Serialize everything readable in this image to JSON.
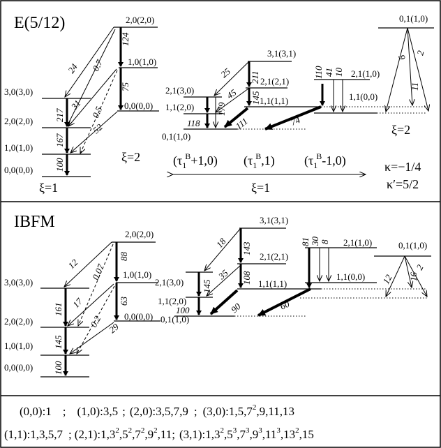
{
  "panel_top": {
    "title": "E(5/12)",
    "xi_label_left": "ξ=1",
    "xi_label_mid": "ξ=2",
    "xi_label_bottom": "ξ=1",
    "xi_label_right": "ξ=2",
    "kappa": "κ=−1/4",
    "kappa_prime": "κ′=5/2",
    "band_labels": {
      "tau_a_pre": "(τ",
      "tau_a_sub": "1",
      "tau_a_sup": "B",
      "tau_a_post": "+1,0)",
      "tau_b_pre": "(τ",
      "tau_b_sub": "1",
      "tau_b_sup": "B",
      "tau_b_post": ",1)",
      "tau_c_pre": "(τ",
      "tau_c_sub": "1",
      "tau_c_sup": "B",
      "tau_c_post": "-1,0)"
    },
    "levels": {
      "g1_20": "2,0(2,0)",
      "g1_10": "1,0(1,0)",
      "g1_00": "0,0(0,0)",
      "g2_30": "3,0(3,0)",
      "g2_20": "2,0(2,0)",
      "g2_10": "1,0(1,0)",
      "g2_00": "0,0(0,0)",
      "g3_21": "2,1(3,0)",
      "g3_11": "1,1(2,0)",
      "g3_01": "0,1(1,0)",
      "g4_31": "3,1(3,1)",
      "g4_21": "2,1(2,1)",
      "g4_11": "1,1(1,1)",
      "g5_21": "2,1(1,0)",
      "g5_11": "1,1(0,0)",
      "g6_01": "0,1(1,0)"
    },
    "transitions": {
      "t124": "124",
      "t75": "75",
      "t24": "24",
      "t0_7": "0.7",
      "t31": "31",
      "t0_5": "0.5",
      "t52": "52",
      "t217": "217",
      "t167": "167",
      "t100": "100",
      "t25": "25",
      "t211": "211",
      "t45": "45",
      "t145": "145",
      "t179": "179",
      "t118": "118",
      "t111": "111",
      "t74": "74",
      "t110": "110",
      "t41": "41",
      "t10": "10",
      "t9": "9",
      "t11": "11",
      "t2": "2"
    }
  },
  "panel_bottom": {
    "title": "IBFM",
    "levels": {
      "g1_20": "2,0(2,0)",
      "g1_10": "1,0(1,0)",
      "g1_00": "0,0(0,0)",
      "g2_30": "3,0(3,0)",
      "g2_20": "2,0(2,0)",
      "g2_10": "1,0(1,0)",
      "g2_00": "0,0(0,0)",
      "g3_21": "2,1(3,0)",
      "g3_11": "1,1(2,0)",
      "g3_01": "0,1(1,0)",
      "g4_31": "3,1(3,1)",
      "g4_21": "2,1(2,1)",
      "g4_11": "1,1(1,1)",
      "g5_21": "2,1(1,0)",
      "g5_11": "1,1(0,0)",
      "g6_01": "0,1(1,0)"
    },
    "transitions": {
      "t88": "88",
      "t63": "63",
      "t12": "12",
      "t0_07": "0.07",
      "t17": "17",
      "t0_2": "0.2",
      "t29": "29",
      "t161": "161",
      "t145": "145",
      "t100": "100",
      "t18": "18",
      "t143": "143",
      "t35": "35",
      "t108": "108",
      "t145b": "145",
      "t100b": "100",
      "t90": "90",
      "t60": "60",
      "t81": "81",
      "t30": "30",
      "t8": "8",
      "t12b": "12",
      "t16": "16",
      "t2": "2"
    }
  },
  "footer": {
    "line1": {
      "a": "(0,0):1",
      "sep1": ";",
      "b": "(1,0):3,5",
      "sep2": ";",
      "c": "(2,0):3,5,7,9",
      "sep3": ";",
      "d_pre": "(3,0):1,5,7",
      "d_sup": "2",
      "d_post": ",9,11,13"
    },
    "line2": {
      "a": "(1,1):1,3,5,7",
      "sep1": ";",
      "b_1": "(2,1):1,3",
      "b_s1": "2",
      "b_2": ",5",
      "b_s2": "2",
      "b_3": ",7",
      "b_s3": "2",
      "b_4": ",9",
      "b_s4": "2",
      "b_5": ",11",
      "sep2": ";",
      "c_1": "(3,1):1,3",
      "c_s1": "2",
      "c_2": ",5",
      "c_s2": "3",
      "c_3": ",7",
      "c_s3": "3",
      "c_4": ",9",
      "c_s4": "3",
      "c_5": ",11",
      "c_s5": "3",
      "c_6": ",13",
      "c_s6": "2",
      "c_7": ",15"
    }
  }
}
